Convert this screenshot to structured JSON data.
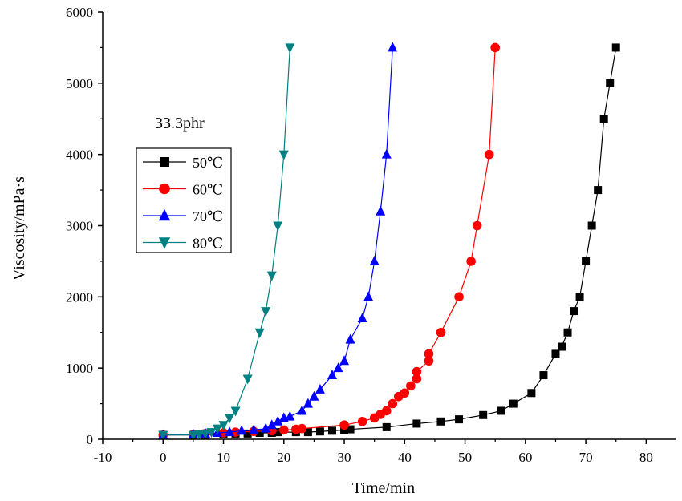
{
  "chart_data": {
    "type": "line",
    "title": "",
    "annotation": "33.3phr",
    "xlabel": "Time/min",
    "ylabel": "Viscosity/mPa·s",
    "xlim": [
      -10,
      85
    ],
    "ylim": [
      0,
      6000
    ],
    "xticks": [
      -10,
      0,
      10,
      20,
      30,
      40,
      50,
      60,
      70,
      80
    ],
    "yticks": [
      0,
      1000,
      2000,
      3000,
      4000,
      5000,
      6000
    ],
    "grid": false,
    "legend_position": "left-middle",
    "series": [
      {
        "name": "50℃",
        "color": "#000000",
        "marker": "square",
        "x": [
          0,
          5,
          7,
          10,
          12,
          14,
          16,
          18,
          19,
          22,
          24,
          26,
          28,
          30,
          31,
          37,
          42,
          46,
          49,
          53,
          56,
          58,
          61,
          63,
          65,
          66,
          67,
          68,
          69,
          70,
          71,
          72,
          73,
          74,
          75
        ],
        "y": [
          60,
          60,
          60,
          70,
          80,
          80,
          90,
          90,
          100,
          100,
          100,
          110,
          120,
          130,
          140,
          170,
          220,
          250,
          280,
          340,
          400,
          500,
          650,
          900,
          1200,
          1300,
          1500,
          1800,
          2000,
          2500,
          3000,
          3500,
          4500,
          5000,
          5500
        ]
      },
      {
        "name": "60℃",
        "color": "#ff0000",
        "marker": "circle",
        "x": [
          0,
          5,
          7,
          10,
          12,
          15,
          18,
          20,
          22,
          23,
          30,
          33,
          35,
          36,
          37,
          38,
          39,
          40,
          41,
          42,
          42,
          44,
          44,
          46,
          49,
          51,
          52,
          54,
          55
        ],
        "y": [
          60,
          70,
          80,
          90,
          100,
          110,
          120,
          130,
          140,
          150,
          200,
          250,
          300,
          350,
          400,
          500,
          600,
          650,
          750,
          850,
          950,
          1100,
          1200,
          1500,
          2000,
          2500,
          3000,
          4000,
          5500
        ]
      },
      {
        "name": "70℃",
        "color": "#0000ff",
        "marker": "triangle-up",
        "x": [
          0,
          5,
          7,
          9,
          11,
          13,
          15,
          17,
          18,
          19,
          20,
          21,
          23,
          24,
          25,
          26,
          28,
          29,
          30,
          31,
          33,
          34,
          35,
          36,
          37,
          38
        ],
        "y": [
          60,
          70,
          80,
          90,
          100,
          120,
          130,
          150,
          200,
          250,
          300,
          320,
          400,
          500,
          600,
          700,
          900,
          1000,
          1100,
          1400,
          1700,
          2000,
          2500,
          3200,
          4000,
          5500
        ]
      },
      {
        "name": "80℃",
        "color": "#008080",
        "marker": "triangle-down",
        "x": [
          0,
          5,
          6,
          7,
          8,
          9,
          10,
          11,
          12,
          14,
          16,
          17,
          18,
          19,
          20,
          21
        ],
        "y": [
          60,
          60,
          70,
          80,
          100,
          150,
          200,
          300,
          400,
          850,
          1500,
          1800,
          2300,
          3000,
          4000,
          5500
        ]
      }
    ]
  }
}
